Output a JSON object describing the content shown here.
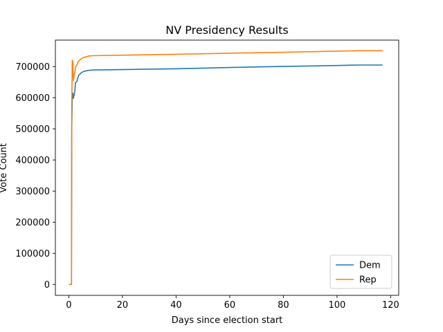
{
  "chart_data": {
    "type": "line",
    "title": "NV Presidency Results",
    "xlabel": "Days since election start",
    "ylabel": "Vote Count",
    "xlim": [
      -5,
      123
    ],
    "ylim": [
      -35000,
      785000
    ],
    "xticks": [
      0,
      20,
      40,
      60,
      80,
      100,
      120
    ],
    "yticks": [
      0,
      100000,
      200000,
      300000,
      400000,
      500000,
      600000,
      700000
    ],
    "grid": false,
    "legend_position": "lower right",
    "series": [
      {
        "name": "Dem",
        "color": "#1f77b4",
        "points": [
          [
            0.0,
            0
          ],
          [
            1.0,
            0
          ],
          [
            1.1,
            500000
          ],
          [
            1.3,
            605000
          ],
          [
            1.5,
            615000
          ],
          [
            1.7,
            598000
          ],
          [
            2.0,
            610000
          ],
          [
            2.3,
            625000
          ],
          [
            2.5,
            648000
          ],
          [
            3.0,
            652000
          ],
          [
            3.3,
            662000
          ],
          [
            3.7,
            672000
          ],
          [
            4.2,
            676000
          ],
          [
            4.8,
            681000
          ],
          [
            5.5,
            684000
          ],
          [
            6.3,
            686000
          ],
          [
            7.5,
            688000
          ],
          [
            9.0,
            689000
          ],
          [
            20.0,
            690500
          ],
          [
            40.0,
            693000
          ],
          [
            60.0,
            697000
          ],
          [
            80.0,
            700500
          ],
          [
            100.0,
            703500
          ],
          [
            108.0,
            705000
          ],
          [
            117.0,
            705000
          ]
        ]
      },
      {
        "name": "Rep",
        "color": "#ff7f0e",
        "points": [
          [
            0.0,
            0
          ],
          [
            1.0,
            0
          ],
          [
            1.1,
            560000
          ],
          [
            1.3,
            720000
          ],
          [
            1.5,
            715000
          ],
          [
            1.7,
            655000
          ],
          [
            2.0,
            672000
          ],
          [
            2.3,
            685000
          ],
          [
            2.6,
            700000
          ],
          [
            3.0,
            705000
          ],
          [
            3.3,
            712000
          ],
          [
            3.7,
            718000
          ],
          [
            4.2,
            722000
          ],
          [
            4.8,
            726000
          ],
          [
            5.5,
            729000
          ],
          [
            6.3,
            731000
          ],
          [
            7.5,
            734000
          ],
          [
            9.0,
            735000
          ],
          [
            20.0,
            736500
          ],
          [
            40.0,
            739500
          ],
          [
            60.0,
            743000
          ],
          [
            80.0,
            746000
          ],
          [
            100.0,
            749500
          ],
          [
            108.0,
            751000
          ],
          [
            117.0,
            751000
          ]
        ]
      }
    ]
  }
}
